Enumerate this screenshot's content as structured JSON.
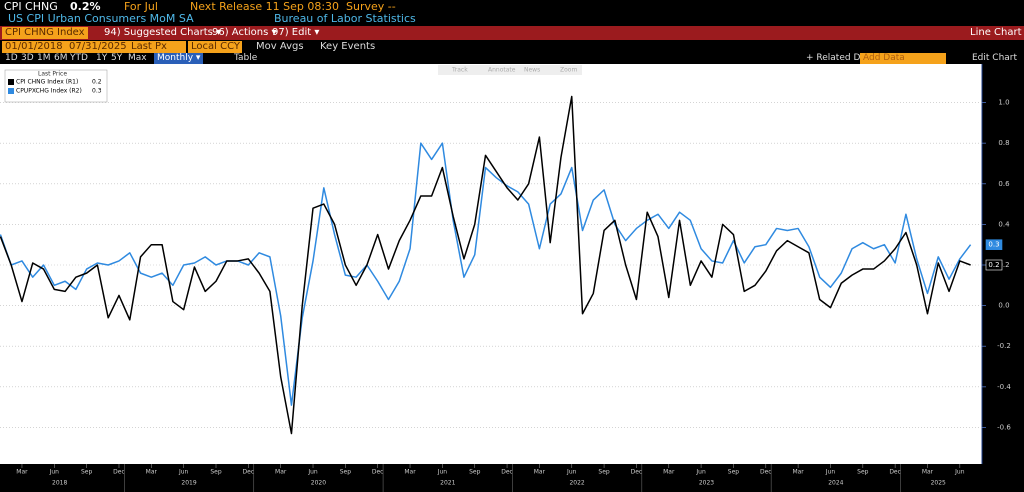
{
  "header": {
    "ticker": "CPI CHNG",
    "last": "0.2%",
    "period": "For Jul",
    "next_release": "Next Release 11 Sep 08:30",
    "survey": "Survey --",
    "description": "US CPI Urban Consumers MoM SA",
    "source": "Bureau of Labor Statistics"
  },
  "menu": {
    "security": "CPI CHNG Index",
    "items": [
      "94) Suggested Charts ▾",
      "96) Actions ▾",
      "97) Edit ▾"
    ],
    "right": "Line Chart"
  },
  "controls": {
    "start": "01/01/2018",
    "end": "07/31/2025",
    "field": "Last Px",
    "currency": "Local CCY",
    "options": [
      "Mov Avgs",
      "Key Events"
    ]
  },
  "toolbar": {
    "periods": [
      "1D",
      "3D",
      "1M",
      "6M",
      "YTD",
      "1Y",
      "5Y",
      "Max"
    ],
    "frequency": "Monthly ▾",
    "table": "Table",
    "related": "+ Related Dat",
    "add_data": "Add Data",
    "edit_chart": "Edit Chart",
    "tools": [
      "Track",
      "Annotate",
      "News",
      "Zoom"
    ]
  },
  "chart_data": {
    "type": "line",
    "legend_title": "Last Price",
    "x": [
      "2018-01",
      "2018-02",
      "2018-03",
      "2018-04",
      "2018-05",
      "2018-06",
      "2018-07",
      "2018-08",
      "2018-09",
      "2018-10",
      "2018-11",
      "2018-12",
      "2019-01",
      "2019-02",
      "2019-03",
      "2019-04",
      "2019-05",
      "2019-06",
      "2019-07",
      "2019-08",
      "2019-09",
      "2019-10",
      "2019-11",
      "2019-12",
      "2020-01",
      "2020-02",
      "2020-03",
      "2020-04",
      "2020-05",
      "2020-06",
      "2020-07",
      "2020-08",
      "2020-09",
      "2020-10",
      "2020-11",
      "2020-12",
      "2021-01",
      "2021-02",
      "2021-03",
      "2021-04",
      "2021-05",
      "2021-06",
      "2021-07",
      "2021-08",
      "2021-09",
      "2021-10",
      "2021-11",
      "2021-12",
      "2022-01",
      "2022-02",
      "2022-03",
      "2022-04",
      "2022-05",
      "2022-06",
      "2022-07",
      "2022-08",
      "2022-09",
      "2022-10",
      "2022-11",
      "2022-12",
      "2023-01",
      "2023-02",
      "2023-03",
      "2023-04",
      "2023-05",
      "2023-06",
      "2023-07",
      "2023-08",
      "2023-09",
      "2023-10",
      "2023-11",
      "2023-12",
      "2024-01",
      "2024-02",
      "2024-03",
      "2024-04",
      "2024-05",
      "2024-06",
      "2024-07",
      "2024-08",
      "2024-09",
      "2024-10",
      "2024-11",
      "2024-12",
      "2025-01",
      "2025-02",
      "2025-03",
      "2025-04",
      "2025-05",
      "2025-06",
      "2025-07"
    ],
    "series": [
      {
        "name": "CPI CHNG Index (R1)",
        "color": "#000000",
        "values": [
          0.34,
          0.2,
          0.02,
          0.21,
          0.18,
          0.08,
          0.07,
          0.14,
          0.16,
          0.2,
          -0.06,
          0.05,
          -0.07,
          0.24,
          0.3,
          0.3,
          0.02,
          -0.02,
          0.19,
          0.07,
          0.12,
          0.22,
          0.22,
          0.23,
          0.16,
          0.07,
          -0.35,
          -0.63,
          0.0,
          0.48,
          0.5,
          0.4,
          0.2,
          0.1,
          0.2,
          0.35,
          0.18,
          0.32,
          0.42,
          0.54,
          0.54,
          0.68,
          0.44,
          0.23,
          0.4,
          0.74,
          0.66,
          0.58,
          0.52,
          0.6,
          0.83,
          0.31,
          0.73,
          1.03,
          -0.04,
          0.06,
          0.37,
          0.42,
          0.2,
          0.03,
          0.46,
          0.34,
          0.04,
          0.42,
          0.1,
          0.22,
          0.14,
          0.4,
          0.35,
          0.07,
          0.1,
          0.17,
          0.27,
          0.32,
          0.29,
          0.26,
          0.03,
          -0.01,
          0.11,
          0.15,
          0.18,
          0.18,
          0.22,
          0.28,
          0.36,
          0.2,
          -0.04,
          0.21,
          0.07,
          0.22,
          0.2
        ]
      },
      {
        "name": "CPUPXCHG Index (R2)",
        "color": "#2f8ae0",
        "values": [
          0.35,
          0.2,
          0.22,
          0.14,
          0.2,
          0.1,
          0.12,
          0.08,
          0.18,
          0.21,
          0.2,
          0.22,
          0.26,
          0.16,
          0.14,
          0.16,
          0.1,
          0.2,
          0.21,
          0.24,
          0.2,
          0.22,
          0.22,
          0.2,
          0.26,
          0.24,
          -0.05,
          -0.49,
          -0.06,
          0.22,
          0.58,
          0.35,
          0.15,
          0.14,
          0.2,
          0.12,
          0.03,
          0.12,
          0.28,
          0.8,
          0.72,
          0.8,
          0.42,
          0.14,
          0.25,
          0.68,
          0.63,
          0.59,
          0.56,
          0.5,
          0.28,
          0.5,
          0.55,
          0.68,
          0.37,
          0.52,
          0.57,
          0.4,
          0.32,
          0.38,
          0.42,
          0.45,
          0.38,
          0.46,
          0.42,
          0.28,
          0.22,
          0.21,
          0.32,
          0.21,
          0.29,
          0.3,
          0.38,
          0.37,
          0.38,
          0.29,
          0.14,
          0.09,
          0.16,
          0.28,
          0.31,
          0.28,
          0.3,
          0.21,
          0.45,
          0.23,
          0.06,
          0.24,
          0.13,
          0.23,
          0.3
        ]
      }
    ],
    "ylim": [
      -0.78,
      1.18
    ],
    "yticks": [
      -0.6,
      -0.4,
      -0.2,
      {
        "value": 0,
        "label": "0.0"
      },
      0.2,
      0.4,
      0.6,
      0.8,
      {
        "value": 1,
        "label": "1.0"
      }
    ],
    "xticks": [
      {
        "value": "2018-03",
        "label": "Mar"
      },
      {
        "value": "2018-06",
        "label": "Jun"
      },
      {
        "value": "2018-09",
        "label": "Sep"
      },
      {
        "value": "2018-12",
        "label": "Dec"
      },
      {
        "value": "2019-03",
        "label": "Mar"
      },
      {
        "value": "2019-06",
        "label": "Jun"
      },
      {
        "value": "2019-09",
        "label": "Sep"
      },
      {
        "value": "2019-12",
        "label": "Dec"
      },
      {
        "value": "2020-03",
        "label": "Mar"
      },
      {
        "value": "2020-06",
        "label": "Jun"
      },
      {
        "value": "2020-09",
        "label": "Sep"
      },
      {
        "value": "2020-12",
        "label": "Dec"
      },
      {
        "value": "2021-03",
        "label": "Mar"
      },
      {
        "value": "2021-06",
        "label": "Jun"
      },
      {
        "value": "2021-09",
        "label": "Sep"
      },
      {
        "value": "2021-12",
        "label": "Dec"
      },
      {
        "value": "2022-03",
        "label": "Mar"
      },
      {
        "value": "2022-06",
        "label": "Jun"
      },
      {
        "value": "2022-09",
        "label": "Sep"
      },
      {
        "value": "2022-12",
        "label": "Dec"
      },
      {
        "value": "2023-03",
        "label": "Mar"
      },
      {
        "value": "2023-06",
        "label": "Jun"
      },
      {
        "value": "2023-09",
        "label": "Sep"
      },
      {
        "value": "2023-12",
        "label": "Dec"
      },
      {
        "value": "2024-03",
        "label": "Mar"
      },
      {
        "value": "2024-06",
        "label": "Jun"
      },
      {
        "value": "2024-09",
        "label": "Sep"
      },
      {
        "value": "2024-12",
        "label": "Dec"
      },
      {
        "value": "2025-03",
        "label": "Mar"
      },
      {
        "value": "2025-06",
        "label": "Jun"
      }
    ],
    "year_ticks": [
      "2018",
      "2019",
      "2020",
      "2021",
      "2022",
      "2023",
      "2024",
      "2025"
    ],
    "grid": true
  }
}
